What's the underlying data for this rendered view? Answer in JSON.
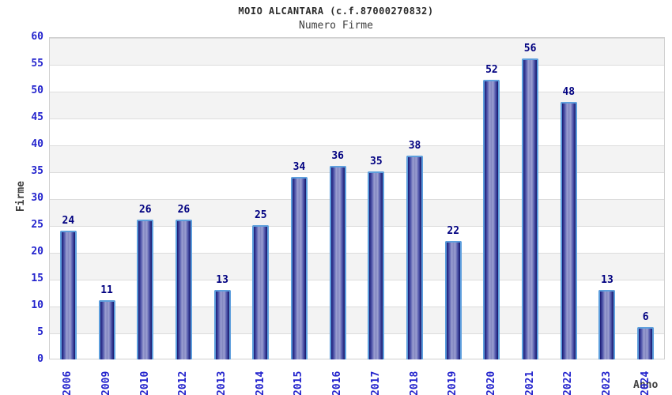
{
  "header": {
    "title": "MOIO ALCANTARA (c.f.87000270832)",
    "subtitle": "Numero Firme"
  },
  "colors": {
    "label_blue": "#2424cd",
    "value_navy": "#000080",
    "axis_label_gray": "#404040",
    "bar_border_lightblue": "#5e9fdd",
    "bar_dark_edge": "#191974",
    "bar_dark_edge_right": "#15156a",
    "bar_light_center": "#9ca0d2",
    "band_gray": "#f3f3f3",
    "grid_line": "#dcdcdc",
    "plot_border": "#d0d0d0"
  },
  "chart_data": {
    "type": "bar",
    "title": "MOIO ALCANTARA (c.f.87000270832)",
    "subtitle": "Numero Firme",
    "xlabel": "Anno",
    "ylabel": "Firme",
    "categories": [
      "2006",
      "2009",
      "2010",
      "2012",
      "2013",
      "2014",
      "2015",
      "2016",
      "2017",
      "2018",
      "2019",
      "2020",
      "2021",
      "2022",
      "2023",
      "2024"
    ],
    "values": [
      24,
      11,
      26,
      26,
      13,
      25,
      34,
      36,
      35,
      38,
      22,
      52,
      56,
      48,
      13,
      6
    ],
    "ylim": [
      0,
      60
    ],
    "yticks": [
      0,
      5,
      10,
      15,
      20,
      25,
      30,
      35,
      40,
      45,
      50,
      55,
      60
    ],
    "grid": "horizontal-bands-alternating",
    "legend": "none",
    "value_labels": "above-bars",
    "x_tick_rotation": -90
  }
}
